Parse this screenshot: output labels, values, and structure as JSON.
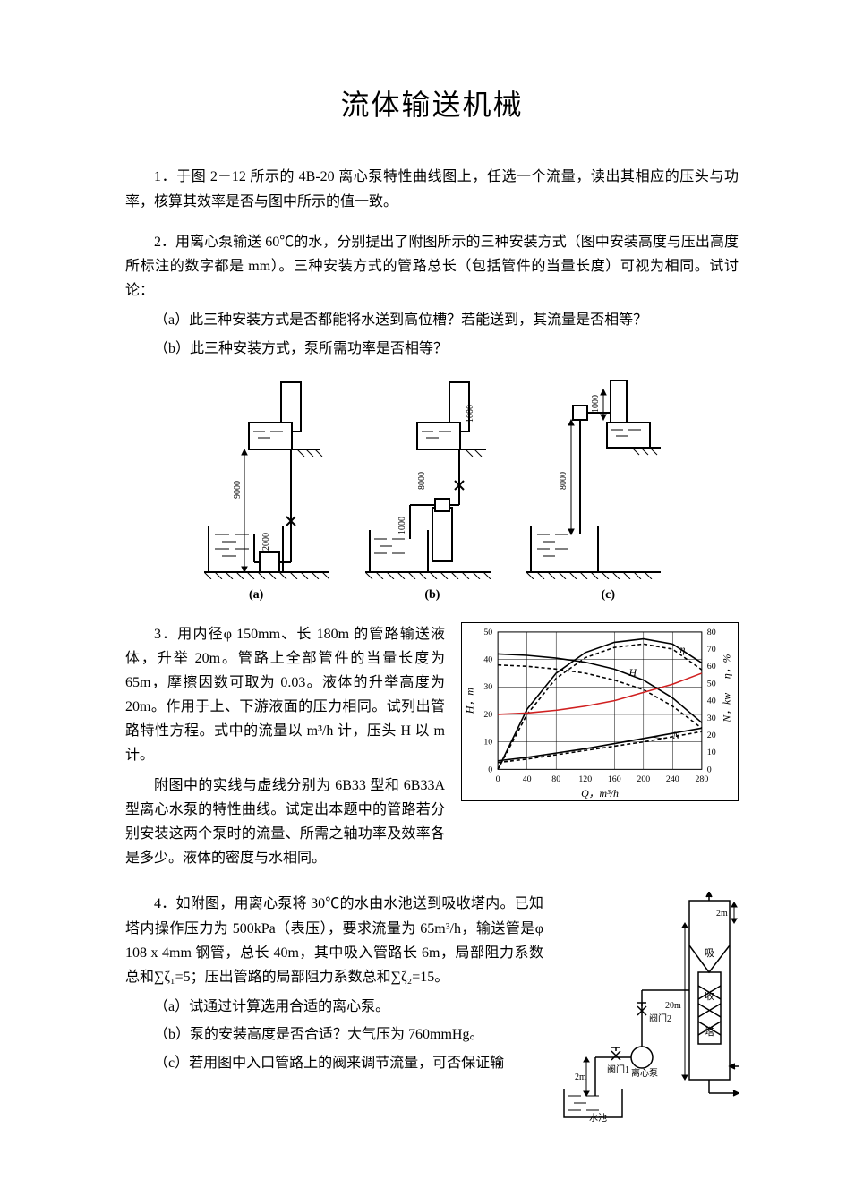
{
  "title": "流体输送机械",
  "q1": {
    "text": "1．于图 2－12 所示的 4B-20 离心泵特性曲线图上，任选一个流量，读出其相应的压头与功率，核算其效率是否与图中所示的值一致。"
  },
  "q2": {
    "lead": "2．用离心泵输送 60℃的水，分别提出了附图所示的三种安装方式（图中安装高度与压出高度所标注的数字都是 mm）。三种安装方式的管路总长（包括管件的当量长度）可视为相同。试讨论：",
    "a": "（a）此三种安装方式是否都能将水送到高位槽？若能送到，其流量是否相等？",
    "b": "（b）此三种安装方式，泵所需功率是否相等？",
    "labels": {
      "a": "(a)",
      "b": "(b)",
      "c": "(c)"
    },
    "diagram": {
      "a": {
        "suction": "2000",
        "discharge": "9000"
      },
      "b": {
        "suction": "1000",
        "discharge": "8000",
        "overflow": "1000"
      },
      "c": {
        "suction": "8000",
        "overflow": "1000"
      }
    }
  },
  "q3": {
    "p1": "3．用内径φ 150mm、长 180m 的管路输送液体，升举 20m。管路上全部管件的当量长度为 65m，摩擦因数可取为 0.03。液体的升举高度为 20m。作用于上、下游液面的压力相同。试列出管路特性方程。式中的流量以 m³/h 计，压头 H 以 m 计。",
    "p2": "附图中的实线与虚线分别为 6B33 型和 6B33A 型离心水泵的特性曲线。试定出本题中的管路若分别安装这两个泵时的流量、所需之轴功率及效率各是多少。液体的密度与水相同。",
    "chart": {
      "type": "line",
      "xlabel": "Q，m³/h",
      "ylabel_left": "H，m",
      "ylabel_right_top": "η，%",
      "ylabel_right_bottom": "N，kw",
      "xlim": [
        0,
        280
      ],
      "xticks": [
        0,
        40,
        80,
        120,
        160,
        200,
        240,
        280
      ],
      "ylim_left": [
        0,
        50
      ],
      "yticks_left": [
        0,
        10,
        20,
        30,
        40,
        50
      ],
      "ylim_right": [
        0,
        80
      ],
      "yticks_right": [
        0,
        10,
        20,
        30,
        40,
        50,
        60,
        70,
        80
      ],
      "curves": {
        "H_solid": {
          "label": "H",
          "color": "#000000",
          "dash": "none",
          "points": [
            [
              0,
              42
            ],
            [
              40,
              41.5
            ],
            [
              80,
              40.5
            ],
            [
              120,
              39
            ],
            [
              160,
              36.5
            ],
            [
              200,
              32.5
            ],
            [
              240,
              26
            ],
            [
              280,
              17
            ]
          ]
        },
        "H_dashed": {
          "label": "H",
          "color": "#000000",
          "dash": "4,3",
          "points": [
            [
              0,
              38
            ],
            [
              40,
              37.5
            ],
            [
              80,
              36.5
            ],
            [
              120,
              35
            ],
            [
              160,
              32.5
            ],
            [
              200,
              29
            ],
            [
              240,
              23
            ],
            [
              280,
              15
            ]
          ]
        },
        "eta_solid": {
          "label": "η",
          "color": "#000000",
          "dash": "none",
          "points_pct": [
            [
              0,
              0
            ],
            [
              40,
              35
            ],
            [
              80,
              56
            ],
            [
              120,
              68
            ],
            [
              160,
              74
            ],
            [
              200,
              76
            ],
            [
              240,
              73
            ],
            [
              280,
              62
            ]
          ]
        },
        "eta_dash": {
          "label": "η",
          "color": "#000000",
          "dash": "4,3",
          "points_pct": [
            [
              0,
              0
            ],
            [
              40,
              32
            ],
            [
              80,
              53
            ],
            [
              120,
              65
            ],
            [
              160,
              71
            ],
            [
              200,
              73
            ],
            [
              240,
              70
            ],
            [
              280,
              58
            ]
          ]
        },
        "N_solid": {
          "label": "N",
          "color": "#000000",
          "dash": "none",
          "points_kw": [
            [
              0,
              5
            ],
            [
              40,
              7
            ],
            [
              80,
              9.5
            ],
            [
              120,
              12
            ],
            [
              160,
              15
            ],
            [
              200,
              18
            ],
            [
              240,
              21
            ],
            [
              280,
              24
            ]
          ]
        },
        "N_dashed": {
          "label": "N",
          "color": "#000000",
          "dash": "4,3",
          "points_kw": [
            [
              0,
              4
            ],
            [
              40,
              6
            ],
            [
              80,
              8.5
            ],
            [
              120,
              11
            ],
            [
              160,
              13.5
            ],
            [
              200,
              16
            ],
            [
              240,
              19
            ],
            [
              280,
              22
            ]
          ]
        },
        "pipeline": {
          "label": "",
          "color": "#d02020",
          "dash": "none",
          "points": [
            [
              0,
              20
            ],
            [
              40,
              20.5
            ],
            [
              80,
              21.5
            ],
            [
              120,
              23
            ],
            [
              160,
              25
            ],
            [
              200,
              28
            ],
            [
              240,
              31
            ],
            [
              280,
              35
            ]
          ]
        }
      },
      "annotations": {
        "H": "H",
        "eta": "η",
        "N": "N"
      },
      "bg": "#ffffff",
      "grid_color": "#000000",
      "tick_fontsize": 10,
      "label_fontsize": 12
    }
  },
  "q4": {
    "lead": "4．如附图，用离心泵将 30℃的水由水池送到吸收塔内。已知塔内操作压力为 500kPa（表压），要求流量为 65m³/h，输送管是φ 108 x 4mm 钢管，总长 40m，其中吸入管路长 6m，局部阻力系数总和∑ζ₁=5；压出管路的局部阻力系数总和∑ζ₂=15。",
    "a": "（a）试通过计算选用合适的离心泵。",
    "b": "（b）泵的安装高度是否合适？大气压为 760mmHg。",
    "c": "（c）若用图中入口管路上的阀来调节流量，可否保证输",
    "diagram": {
      "labels": {
        "valve1": "阀门1",
        "valve2": "阀门2",
        "pump": "离心泵",
        "pool": "水池",
        "tower_up": "吸",
        "tower_mid": "收",
        "tower_low": "塔",
        "h_top": "2m",
        "h_suction": "2m",
        "h_tower": "20m"
      }
    }
  }
}
